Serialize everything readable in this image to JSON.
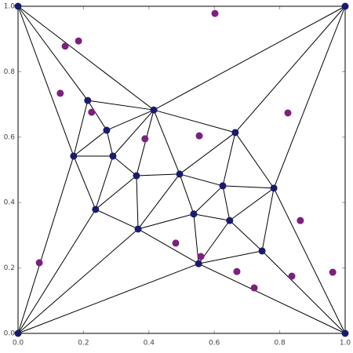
{
  "chart_data": {
    "type": "mesh",
    "xlim": [
      0,
      1
    ],
    "ylim": [
      0,
      1
    ],
    "xticks": [
      {
        "value": 0,
        "label": "0.0"
      },
      {
        "value": 0.2,
        "label": "0.2"
      },
      {
        "value": 0.4,
        "label": "0.4"
      },
      {
        "value": 0.6,
        "label": "0.6"
      },
      {
        "value": 0.8,
        "label": "0.8"
      },
      {
        "value": 1,
        "label": "1.0"
      }
    ],
    "yticks": [
      {
        "value": 0,
        "label": "0.0"
      },
      {
        "value": 0.2,
        "label": "0.2"
      },
      {
        "value": 0.4,
        "label": "0.4"
      },
      {
        "value": 0.6,
        "label": "0.6"
      },
      {
        "value": 0.8,
        "label": "0.8"
      },
      {
        "value": 1,
        "label": "1.0"
      }
    ],
    "nodes": {
      "color": "#1a1a6e",
      "x": [
        0,
        1,
        0,
        1,
        0.213,
        0.415,
        0.271,
        0.664,
        0.17,
        0.29,
        0.362,
        0.494,
        0.626,
        0.782,
        0.237,
        0.537,
        0.647,
        0.367,
        0.746,
        0.552
      ],
      "y": [
        1,
        1,
        0,
        0,
        0.712,
        0.683,
        0.621,
        0.614,
        0.542,
        0.542,
        0.482,
        0.487,
        0.451,
        0.444,
        0.379,
        0.365,
        0.345,
        0.319,
        0.252,
        0.213
      ]
    },
    "edges": [
      [
        0,
        1
      ],
      [
        1,
        3
      ],
      [
        3,
        2
      ],
      [
        2,
        0
      ],
      [
        0,
        4
      ],
      [
        0,
        5
      ],
      [
        0,
        8
      ],
      [
        1,
        5
      ],
      [
        1,
        7
      ],
      [
        1,
        13
      ],
      [
        2,
        8
      ],
      [
        2,
        14
      ],
      [
        2,
        17
      ],
      [
        2,
        19
      ],
      [
        3,
        13
      ],
      [
        3,
        18
      ],
      [
        3,
        19
      ],
      [
        4,
        5
      ],
      [
        4,
        6
      ],
      [
        4,
        8
      ],
      [
        5,
        6
      ],
      [
        5,
        9
      ],
      [
        5,
        10
      ],
      [
        5,
        11
      ],
      [
        5,
        7
      ],
      [
        6,
        8
      ],
      [
        6,
        9
      ],
      [
        7,
        11
      ],
      [
        7,
        12
      ],
      [
        7,
        13
      ],
      [
        8,
        9
      ],
      [
        8,
        14
      ],
      [
        9,
        10
      ],
      [
        9,
        14
      ],
      [
        10,
        11
      ],
      [
        10,
        14
      ],
      [
        10,
        17
      ],
      [
        11,
        12
      ],
      [
        11,
        15
      ],
      [
        11,
        17
      ],
      [
        12,
        13
      ],
      [
        12,
        16
      ],
      [
        12,
        15
      ],
      [
        13,
        16
      ],
      [
        13,
        18
      ],
      [
        14,
        17
      ],
      [
        15,
        16
      ],
      [
        15,
        17
      ],
      [
        15,
        19
      ],
      [
        16,
        18
      ],
      [
        16,
        19
      ],
      [
        17,
        19
      ],
      [
        18,
        19
      ]
    ],
    "points": {
      "color": "#7d1f7f",
      "x": [
        0.602,
        0.185,
        0.144,
        0.129,
        0.225,
        0.825,
        0.388,
        0.554,
        0.863,
        0.065,
        0.482,
        0.559,
        0.669,
        0.837,
        0.722,
        0.962
      ],
      "y": [
        0.978,
        0.894,
        0.878,
        0.734,
        0.676,
        0.674,
        0.595,
        0.604,
        0.345,
        0.216,
        0.276,
        0.235,
        0.189,
        0.175,
        0.139,
        0.187
      ]
    }
  }
}
